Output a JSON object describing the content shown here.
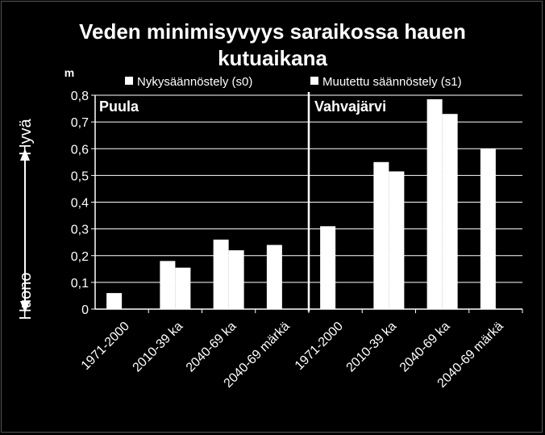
{
  "chart_data": {
    "type": "bar",
    "title": "Veden minimisyvyys saraikossa hauen kutuaikana",
    "title_lines": [
      "Veden minimisyvyys saraikossa hauen",
      "kutuaikana"
    ],
    "ylabel": "m",
    "ylim": [
      0,
      0.8
    ],
    "yticks": [
      "0",
      "0,1",
      "0,2",
      "0,3",
      "0,4",
      "0,5",
      "0,6",
      "0,7",
      "0,8"
    ],
    "grid": true,
    "legend_position": "top",
    "y_annotations": {
      "top": "Hyvä",
      "bottom": "Huono"
    },
    "series": [
      {
        "name": "Nykysäännöstely (s0)",
        "color": "#ffffff"
      },
      {
        "name": "Muutettu säännöstely (s1)",
        "color": "#ffffff"
      }
    ],
    "panels": [
      {
        "label": "Puula",
        "categories": [
          "1971-2000",
          "2010-39 ka",
          "2040-69 ka",
          "2040-69 märkä"
        ],
        "values": [
          [
            0.06,
            null
          ],
          [
            0.18,
            0.155
          ],
          [
            0.26,
            0.22
          ],
          [
            0.24,
            null
          ]
        ]
      },
      {
        "label": "Vahvajärvi",
        "categories": [
          "1971-2000",
          "2010-39 ka",
          "2040-69 ka",
          "2040-69 märkä"
        ],
        "values": [
          [
            0.31,
            null
          ],
          [
            0.55,
            0.515
          ],
          [
            0.785,
            0.73
          ],
          [
            0.6,
            null
          ]
        ]
      }
    ]
  },
  "colors": {
    "background": "#000000",
    "bar": "#ffffff",
    "grid": "#ffffff",
    "text": "#ffffff"
  }
}
